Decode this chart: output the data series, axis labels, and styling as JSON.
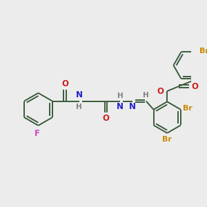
{
  "bg_color": "#ececec",
  "bond_color": "#3a5a3a",
  "N_color": "#2020cc",
  "O_color": "#cc2020",
  "F_color": "#cc44cc",
  "Br_color": "#cc8800",
  "H_color": "#808080",
  "line_width": 1.4,
  "font_size": 7.5,
  "fig_width": 3.0,
  "fig_height": 3.0,
  "dpi": 100,
  "xlim": [
    0,
    10
  ],
  "ylim": [
    0,
    10
  ]
}
